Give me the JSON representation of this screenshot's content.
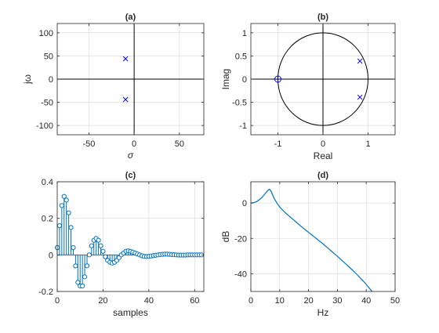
{
  "colors": {
    "axis": "#262626",
    "grid": "#d9d9d9",
    "marker": "#0000ff",
    "line": "#0072bd",
    "circle": "#262626"
  },
  "chart_data": [
    {
      "panel": "a",
      "type": "scatter",
      "title": "(a)",
      "xlabel": "σ",
      "ylabel": "jω",
      "xlim": [
        -85,
        77
      ],
      "ylim": [
        -120,
        120
      ],
      "xticks": [
        -50,
        0,
        50
      ],
      "xtick_labels": [
        "-50",
        "0",
        "50"
      ],
      "yticks": [
        100,
        50,
        0,
        -50,
        -100
      ],
      "ytick_labels": [
        "100",
        "50",
        "0",
        "-50",
        "-100"
      ],
      "grid": true,
      "series": [
        {
          "marker": "x",
          "x": [
            -9.5,
            -9.5
          ],
          "y": [
            44,
            -44
          ]
        }
      ]
    },
    {
      "panel": "b",
      "type": "scatter",
      "title": "(b)",
      "xlabel": "Real",
      "ylabel": "Imag",
      "xlim": [
        -1.6,
        1.6
      ],
      "ylim": [
        -1.2,
        1.2
      ],
      "xticks": [
        -1,
        0,
        1
      ],
      "xtick_labels": [
        "-1",
        "0",
        "1"
      ],
      "yticks": [
        1,
        0.5,
        0,
        -0.5,
        -1
      ],
      "ytick_labels": [
        "1",
        "0.5",
        "0",
        "-0.5",
        "-1"
      ],
      "grid": true,
      "unit_circle": true,
      "series": [
        {
          "marker": "x",
          "x": [
            0.82,
            0.82
          ],
          "y": [
            0.39,
            -0.39
          ]
        },
        {
          "marker": "o",
          "x": [
            -1
          ],
          "y": [
            0
          ]
        }
      ]
    },
    {
      "panel": "c",
      "type": "stem",
      "title": "(c)",
      "xlabel": "samples",
      "ylabel": "",
      "xlim": [
        0,
        64
      ],
      "ylim": [
        -0.2,
        0.4
      ],
      "xticks": [
        0,
        20,
        40,
        60
      ],
      "xtick_labels": [
        "0",
        "20",
        "40",
        "60"
      ],
      "yticks": [
        0.4,
        0.2,
        0,
        -0.2
      ],
      "ytick_labels": [
        "0.4",
        "0.2",
        "0",
        "-0.2"
      ],
      "grid": true,
      "x": [
        0,
        1,
        2,
        3,
        4,
        5,
        6,
        7,
        8,
        9,
        10,
        11,
        12,
        13,
        14,
        15,
        16,
        17,
        18,
        19,
        20,
        21,
        22,
        23,
        24,
        25,
        26,
        27,
        28,
        29,
        30,
        31,
        32,
        33,
        34,
        35,
        36,
        37,
        38,
        39,
        40,
        41,
        42,
        43,
        44,
        45,
        46,
        47,
        48,
        49,
        50,
        51,
        52,
        53,
        54,
        55,
        56,
        57,
        58,
        59,
        60,
        61,
        62,
        63
      ],
      "y": [
        0.04,
        0.16,
        0.27,
        0.32,
        0.3,
        0.23,
        0.15,
        0.04,
        -0.06,
        -0.15,
        -0.17,
        -0.17,
        -0.12,
        -0.06,
        0.0,
        0.05,
        0.08,
        0.09,
        0.08,
        0.05,
        0.02,
        -0.01,
        -0.03,
        -0.04,
        -0.045,
        -0.04,
        -0.03,
        -0.015,
        0.0,
        0.01,
        0.02,
        0.022,
        0.02,
        0.015,
        0.01,
        0.005,
        0.0,
        -0.005,
        -0.008,
        -0.009,
        -0.008,
        -0.006,
        -0.004,
        -0.002,
        0.0,
        0.002,
        0.003,
        0.004,
        0.004,
        0.003,
        0.002,
        0.001,
        0.0,
        -0.001,
        -0.001,
        -0.001,
        -0.001,
        0.0,
        0.0,
        0.0,
        0.0,
        0.0,
        0.0,
        0.0
      ]
    },
    {
      "panel": "d",
      "type": "line",
      "title": "(d)",
      "xlabel": "Hz",
      "ylabel": "dB",
      "xlim": [
        0,
        50
      ],
      "ylim": [
        -50,
        12
      ],
      "xticks": [
        0,
        10,
        20,
        30,
        40,
        50
      ],
      "xtick_labels": [
        "0",
        "10",
        "20",
        "30",
        "40",
        "50"
      ],
      "yticks": [
        0,
        -20,
        -40
      ],
      "ytick_labels": [
        "0",
        "-20",
        "-40"
      ],
      "grid": true,
      "x": [
        0,
        1,
        2,
        3,
        4,
        5,
        6,
        6.5,
        7,
        7.5,
        8,
        9,
        10,
        11,
        12,
        13,
        14,
        15,
        16,
        17,
        18,
        19,
        20,
        21,
        22,
        23,
        24,
        25,
        26,
        27,
        28,
        29,
        30,
        31,
        32,
        33,
        34,
        35,
        36,
        37,
        38,
        39,
        40,
        41,
        42
      ],
      "y": [
        0,
        0.2,
        0.8,
        1.9,
        3.4,
        5.4,
        7.3,
        7.8,
        6.8,
        4.7,
        2.8,
        0.0,
        -2.2,
        -4.0,
        -5.6,
        -7.0,
        -8.4,
        -9.8,
        -11.2,
        -12.6,
        -14.0,
        -15.3,
        -16.6,
        -17.9,
        -19.2,
        -20.5,
        -21.8,
        -23.1,
        -24.5,
        -25.9,
        -27.3,
        -28.7,
        -30.1,
        -31.6,
        -33.1,
        -34.6,
        -36.1,
        -37.6,
        -39.1,
        -40.8,
        -42.5,
        -44.2,
        -46.0,
        -48.0,
        -50.0
      ]
    }
  ]
}
